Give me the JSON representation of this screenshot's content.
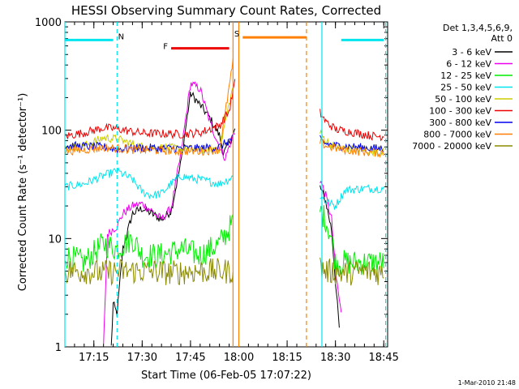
{
  "chart_data": {
    "type": "line",
    "title": "HESSI Observing Summary Count Rates, Corrected",
    "xlabel": "Start Time (06-Feb-05 17:07:22)",
    "ylabel": "Corrected Count Rate (s⁻¹ detector⁻¹)",
    "y_scale": "log",
    "ylim": [
      1,
      1000
    ],
    "y_ticks": [
      {
        "value": 1,
        "label": "1"
      },
      {
        "value": 10,
        "label": "10"
      },
      {
        "value": 100,
        "label": "100"
      },
      {
        "value": 1000,
        "label": "1000"
      }
    ],
    "x_range_minutes": [
      17.1,
      18.77
    ],
    "x_ticks": [
      {
        "value": 17.25,
        "label": "17:15"
      },
      {
        "value": 17.5,
        "label": "17:30"
      },
      {
        "value": 17.75,
        "label": "17:45"
      },
      {
        "value": 18.0,
        "label": "18:00"
      },
      {
        "value": 18.25,
        "label": "18:15"
      },
      {
        "value": 18.5,
        "label": "18:30"
      },
      {
        "value": 18.75,
        "label": "18:45"
      }
    ],
    "legend_header": [
      "Det 1,3,4,5,6,9,",
      "Att 0"
    ],
    "legend_position": "right",
    "stamp": "1-Mar-2010 21:48",
    "flags": [
      {
        "label": "N",
        "color": "#00e5ee",
        "segments": [
          [
            17.1,
            17.35
          ],
          [
            18.53,
            18.75
          ]
        ],
        "value": 680
      },
      {
        "label": "F",
        "color": "#ee0000",
        "segments": [
          [
            17.65,
            17.95
          ]
        ],
        "value": 570
      },
      {
        "label": "S",
        "color": "#ff7f00",
        "segments": [
          [
            18.02,
            18.35
          ]
        ],
        "value": 720
      }
    ],
    "vlines": [
      {
        "x": 17.1,
        "color": "#00e5ee",
        "style": "solid"
      },
      {
        "x": 17.37,
        "color": "#00e5ee",
        "style": "dashed"
      },
      {
        "x": 17.97,
        "color": "#ff7f00",
        "style": "solid"
      },
      {
        "x": 18.0,
        "color": "#ff7f00",
        "style": "solid"
      },
      {
        "x": 18.35,
        "color": "#ff7f00",
        "style": "dashed"
      },
      {
        "x": 18.43,
        "color": "#00e5ee",
        "style": "solid"
      },
      {
        "x": 18.76,
        "color": "#00e5ee",
        "style": "dashed"
      }
    ],
    "series": [
      {
        "name": "3 - 6 keV",
        "color": "#000000",
        "segments": [
          [
            [
              17.34,
              1
            ],
            [
              17.35,
              2.5
            ],
            [
              17.37,
              2.0
            ],
            [
              17.4,
              8
            ],
            [
              17.45,
              17
            ],
            [
              17.5,
              19
            ],
            [
              17.55,
              17
            ],
            [
              17.6,
              15
            ],
            [
              17.65,
              18
            ],
            [
              17.7,
              50
            ],
            [
              17.75,
              220
            ],
            [
              17.8,
              170
            ],
            [
              17.85,
              130
            ],
            [
              17.9,
              90
            ],
            [
              17.92,
              60
            ],
            [
              17.95,
              75
            ],
            [
              17.98,
              100
            ]
          ],
          [
            [
              18.42,
              30
            ],
            [
              18.45,
              22
            ],
            [
              18.48,
              12
            ],
            [
              18.5,
              4
            ],
            [
              18.52,
              1.5
            ]
          ]
        ]
      },
      {
        "name": "6 - 12 keV",
        "color": "#ee00ee",
        "segments": [
          [
            [
              17.3,
              1
            ],
            [
              17.32,
              11
            ],
            [
              17.37,
              13
            ],
            [
              17.4,
              17
            ],
            [
              17.45,
              20
            ],
            [
              17.5,
              21
            ],
            [
              17.55,
              18
            ],
            [
              17.6,
              15
            ],
            [
              17.65,
              19
            ],
            [
              17.7,
              60
            ],
            [
              17.75,
              270
            ],
            [
              17.8,
              240
            ],
            [
              17.85,
              120
            ],
            [
              17.9,
              70
            ],
            [
              17.93,
              55
            ],
            [
              17.96,
              80
            ],
            [
              17.98,
              95
            ]
          ],
          [
            [
              18.42,
              35
            ],
            [
              18.45,
              25
            ],
            [
              18.48,
              15
            ],
            [
              18.5,
              5
            ],
            [
              18.53,
              2
            ]
          ]
        ]
      },
      {
        "name": "12 - 25 keV",
        "color": "#00ee00",
        "segments": [
          [
            [
              17.1,
              7
            ],
            [
              17.2,
              6
            ],
            [
              17.3,
              9
            ],
            [
              17.37,
              8
            ],
            [
              17.45,
              10
            ],
            [
              17.5,
              7
            ],
            [
              17.6,
              7
            ],
            [
              17.7,
              8
            ],
            [
              17.8,
              7
            ],
            [
              17.9,
              9
            ],
            [
              17.97,
              14
            ]
          ],
          [
            [
              18.42,
              18
            ],
            [
              18.45,
              15
            ],
            [
              18.48,
              10
            ],
            [
              18.5,
              6
            ],
            [
              18.55,
              6
            ],
            [
              18.65,
              6
            ],
            [
              18.75,
              6
            ]
          ]
        ]
      },
      {
        "name": "25 - 50 keV",
        "color": "#00e5ee",
        "segments": [
          [
            [
              17.1,
              30
            ],
            [
              17.2,
              32
            ],
            [
              17.3,
              38
            ],
            [
              17.37,
              42
            ],
            [
              17.45,
              35
            ],
            [
              17.5,
              27
            ],
            [
              17.55,
              25
            ],
            [
              17.6,
              26
            ],
            [
              17.65,
              32
            ],
            [
              17.7,
              38
            ],
            [
              17.75,
              36
            ],
            [
              17.8,
              35
            ],
            [
              17.9,
              32
            ],
            [
              17.97,
              37
            ]
          ],
          [
            [
              18.42,
              25
            ],
            [
              18.45,
              22
            ],
            [
              18.5,
              20
            ],
            [
              18.55,
              28
            ],
            [
              18.65,
              29
            ],
            [
              18.75,
              29
            ]
          ]
        ]
      },
      {
        "name": "50 - 100 keV",
        "color": "#cdcd00",
        "segments": [
          [
            [
              17.1,
              68
            ],
            [
              17.2,
              72
            ],
            [
              17.3,
              85
            ],
            [
              17.37,
              83
            ],
            [
              17.45,
              75
            ],
            [
              17.5,
              70
            ],
            [
              17.6,
              69
            ],
            [
              17.7,
              68
            ],
            [
              17.8,
              66
            ],
            [
              17.9,
              68
            ],
            [
              17.97,
              250
            ]
          ],
          [
            [
              18.42,
              95
            ],
            [
              18.45,
              80
            ],
            [
              18.5,
              70
            ],
            [
              18.6,
              66
            ],
            [
              18.7,
              64
            ],
            [
              18.75,
              64
            ]
          ]
        ]
      },
      {
        "name": "100 - 300 keV",
        "color": "#ee0000",
        "segments": [
          [
            [
              17.1,
              88
            ],
            [
              17.2,
              95
            ],
            [
              17.3,
              105
            ],
            [
              17.37,
              103
            ],
            [
              17.45,
              97
            ],
            [
              17.5,
              94
            ],
            [
              17.6,
              93
            ],
            [
              17.7,
              92
            ],
            [
              17.8,
              95
            ],
            [
              17.9,
              110
            ],
            [
              17.95,
              150
            ],
            [
              17.98,
              280
            ]
          ],
          [
            [
              18.42,
              145
            ],
            [
              18.45,
              120
            ],
            [
              18.5,
              102
            ],
            [
              18.6,
              95
            ],
            [
              18.7,
              88
            ],
            [
              18.75,
              88
            ]
          ]
        ]
      },
      {
        "name": "300 - 800 keV",
        "color": "#0000ee",
        "segments": [
          [
            [
              17.1,
              72
            ],
            [
              17.2,
              71
            ],
            [
              17.3,
              70
            ],
            [
              17.37,
              67
            ],
            [
              17.45,
              68
            ],
            [
              17.5,
              69
            ],
            [
              17.6,
              68
            ],
            [
              17.7,
              68
            ],
            [
              17.8,
              68
            ],
            [
              17.9,
              70
            ],
            [
              17.97,
              85
            ]
          ],
          [
            [
              18.42,
              82
            ],
            [
              18.45,
              75
            ],
            [
              18.5,
              72
            ],
            [
              18.6,
              70
            ],
            [
              18.7,
              68
            ],
            [
              18.75,
              68
            ]
          ]
        ]
      },
      {
        "name": "800 - 7000 keV",
        "color": "#ff7f00",
        "segments": [
          [
            [
              17.1,
              64
            ],
            [
              17.2,
              66
            ],
            [
              17.3,
              69
            ],
            [
              17.37,
              68
            ],
            [
              17.45,
              66
            ],
            [
              17.5,
              66
            ],
            [
              17.6,
              65
            ],
            [
              17.7,
              64
            ],
            [
              17.8,
              64
            ],
            [
              17.9,
              66
            ],
            [
              17.97,
              420
            ]
          ],
          [
            [
              18.42,
              78
            ],
            [
              18.45,
              72
            ],
            [
              18.5,
              68
            ],
            [
              18.6,
              64
            ],
            [
              18.7,
              62
            ],
            [
              18.75,
              62
            ]
          ]
        ]
      },
      {
        "name": "7000 - 20000 keV",
        "color": "#8b8b00",
        "segments": [
          [
            [
              17.1,
              5
            ],
            [
              17.2,
              5
            ],
            [
              17.3,
              4.8
            ],
            [
              17.37,
              5
            ],
            [
              17.45,
              5
            ],
            [
              17.55,
              5
            ],
            [
              17.65,
              4.8
            ],
            [
              17.75,
              5
            ],
            [
              17.85,
              5
            ],
            [
              17.97,
              5
            ]
          ],
          [
            [
              18.42,
              5.5
            ],
            [
              18.45,
              5
            ],
            [
              18.55,
              4.8
            ],
            [
              18.65,
              5
            ],
            [
              18.75,
              4.8
            ]
          ]
        ]
      }
    ]
  }
}
